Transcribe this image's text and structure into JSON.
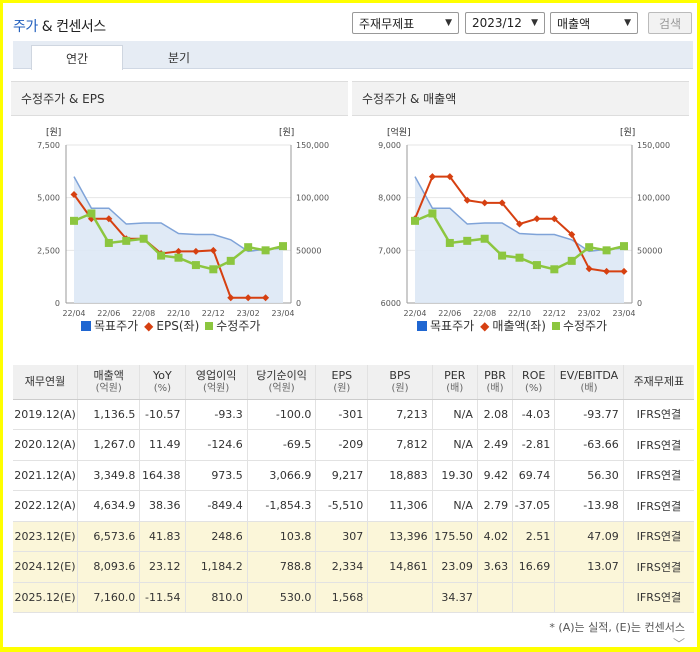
{
  "header": {
    "title_main": "주가",
    "title_rest": " & 컨센서스"
  },
  "controls": {
    "consolidation": "주재무제표",
    "period": "2023/12",
    "metric": "매출액",
    "search_label": "검색"
  },
  "tabs": [
    {
      "label": "연간",
      "active": true
    },
    {
      "label": "분기",
      "active": false
    }
  ],
  "colors": {
    "target": "#1f66d1",
    "eps": "#d64011",
    "price": "#8cc63f",
    "area": "#c9d9ee",
    "accent": "#1f5dbd"
  },
  "charts": [
    {
      "panel_title": "수정주가 & EPS",
      "left_unit": "[원]",
      "right_unit": "[원]",
      "left_ticks": [
        "7,500",
        "5,000",
        "2,500",
        "0"
      ],
      "right_ticks": [
        "150,000",
        "100,000",
        "50000",
        "0"
      ],
      "x_ticks": [
        "22/04",
        "22/06",
        "22/08",
        "22/10",
        "22/12",
        "23/02",
        "23/04"
      ],
      "legend": [
        "목표주가",
        "EPS(좌)",
        "수정주가"
      ]
    },
    {
      "panel_title": "수정주가 & 매출액",
      "left_unit": "[억원]",
      "right_unit": "[원]",
      "left_ticks": [
        "9,000",
        "8,000",
        "7,000",
        "6000"
      ],
      "right_ticks": [
        "150,000",
        "100,000",
        "50000",
        "0"
      ],
      "x_ticks": [
        "22/04",
        "22/06",
        "22/08",
        "22/10",
        "22/12",
        "23/02",
        "23/04"
      ],
      "legend": [
        "목표주가",
        "매출액(좌)",
        "수정주가"
      ]
    }
  ],
  "chart_data": [
    {
      "type": "line",
      "title": "수정주가 & EPS",
      "ylim_left": [
        0,
        7500
      ],
      "ylim_right": [
        0,
        150000
      ],
      "x": [
        "22/04",
        "22/05",
        "22/06",
        "22/07",
        "22/08",
        "22/09",
        "22/10",
        "22/11",
        "22/12",
        "23/01",
        "23/02",
        "23/03",
        "23/04"
      ],
      "series": [
        {
          "name": "목표주가",
          "axis": "right",
          "type": "area",
          "values": [
            120000,
            90000,
            90000,
            75000,
            76000,
            76000,
            66000,
            65000,
            65000,
            60000,
            49000,
            51000,
            52000
          ]
        },
        {
          "name": "EPS(좌)",
          "axis": "left",
          "values": [
            5150,
            4000,
            4000,
            3050,
            3050,
            2350,
            2450,
            2450,
            2500,
            250,
            250,
            250,
            null
          ]
        },
        {
          "name": "수정주가",
          "axis": "right",
          "values": [
            78000,
            85000,
            57000,
            59000,
            61000,
            45000,
            43000,
            36000,
            32000,
            40000,
            53000,
            50000,
            54000
          ]
        }
      ]
    },
    {
      "type": "line",
      "title": "수정주가 & 매출액",
      "ylim_left": [
        6000,
        9000
      ],
      "ylim_right": [
        0,
        150000
      ],
      "x": [
        "22/04",
        "22/05",
        "22/06",
        "22/07",
        "22/08",
        "22/09",
        "22/10",
        "22/11",
        "22/12",
        "23/01",
        "23/02",
        "23/03",
        "23/04"
      ],
      "series": [
        {
          "name": "목표주가",
          "axis": "right",
          "type": "area",
          "values": [
            120000,
            90000,
            90000,
            75000,
            76000,
            76000,
            66000,
            65000,
            65000,
            60000,
            49000,
            51000,
            52000
          ]
        },
        {
          "name": "매출액(좌)",
          "axis": "left",
          "values": [
            7600,
            8400,
            8400,
            7950,
            7900,
            7900,
            7500,
            7600,
            7600,
            7300,
            6650,
            6600,
            6600
          ]
        },
        {
          "name": "수정주가",
          "axis": "right",
          "values": [
            78000,
            85000,
            57000,
            59000,
            61000,
            45000,
            43000,
            36000,
            32000,
            40000,
            53000,
            50000,
            54000
          ]
        }
      ]
    }
  ],
  "table": {
    "headers": [
      [
        "재무연월",
        ""
      ],
      [
        "매출액",
        "(억원)"
      ],
      [
        "YoY",
        "(%)"
      ],
      [
        "영업이익",
        "(억원)"
      ],
      [
        "당기순이익",
        "(억원)"
      ],
      [
        "EPS",
        "(원)"
      ],
      [
        "BPS",
        "(원)"
      ],
      [
        "PER",
        "(배)"
      ],
      [
        "PBR",
        "(배)"
      ],
      [
        "ROE",
        "(%)"
      ],
      [
        "EV/EBITDA",
        "(배)"
      ],
      [
        "주재무제표",
        ""
      ]
    ],
    "rows": [
      {
        "est": false,
        "cells": [
          "2019.12(A)",
          "1,136.5",
          "-10.57",
          "-93.3",
          "-100.0",
          "-301",
          "7,213",
          "N/A",
          "2.08",
          "-4.03",
          "-93.77",
          "IFRS연결"
        ]
      },
      {
        "est": false,
        "cells": [
          "2020.12(A)",
          "1,267.0",
          "11.49",
          "-124.6",
          "-69.5",
          "-209",
          "7,812",
          "N/A",
          "2.49",
          "-2.81",
          "-63.66",
          "IFRS연결"
        ]
      },
      {
        "est": false,
        "cells": [
          "2021.12(A)",
          "3,349.8",
          "164.38",
          "973.5",
          "3,066.9",
          "9,217",
          "18,883",
          "19.30",
          "9.42",
          "69.74",
          "56.30",
          "IFRS연결"
        ]
      },
      {
        "est": false,
        "cells": [
          "2022.12(A)",
          "4,634.9",
          "38.36",
          "-849.4",
          "-1,854.3",
          "-5,510",
          "11,306",
          "N/A",
          "2.79",
          "-37.05",
          "-13.98",
          "IFRS연결"
        ]
      },
      {
        "est": true,
        "cells": [
          "2023.12(E)",
          "6,573.6",
          "41.83",
          "248.6",
          "103.8",
          "307",
          "13,396",
          "175.50",
          "4.02",
          "2.51",
          "47.09",
          "IFRS연결"
        ]
      },
      {
        "est": true,
        "cells": [
          "2024.12(E)",
          "8,093.6",
          "23.12",
          "1,184.2",
          "788.8",
          "2,334",
          "14,861",
          "23.09",
          "3.63",
          "16.69",
          "13.07",
          "IFRS연결"
        ]
      },
      {
        "est": true,
        "cells": [
          "2025.12(E)",
          "7,160.0",
          "-11.54",
          "810.0",
          "530.0",
          "1,568",
          "",
          "34.37",
          "",
          "",
          "",
          "IFRS연결"
        ]
      }
    ]
  },
  "footnote": "* (A)는 실적, (E)는 컨센서스",
  "more_icon": "chevron-down-icon"
}
